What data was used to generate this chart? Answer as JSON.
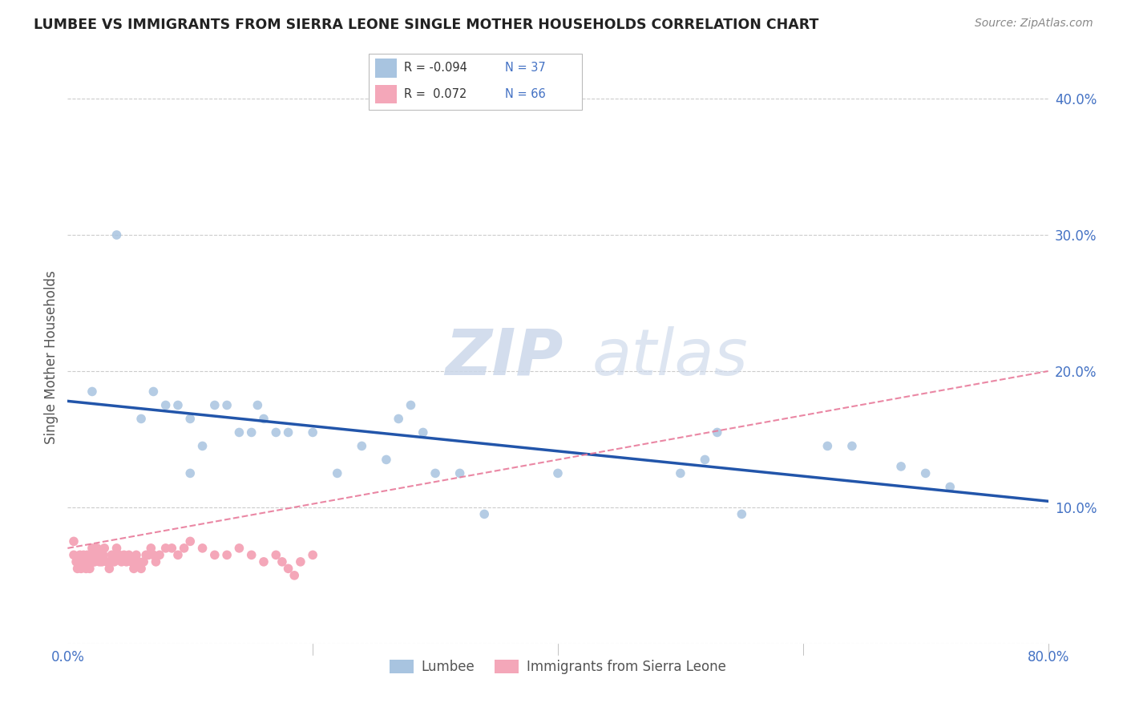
{
  "title": "LUMBEE VS IMMIGRANTS FROM SIERRA LEONE SINGLE MOTHER HOUSEHOLDS CORRELATION CHART",
  "source": "Source: ZipAtlas.com",
  "ylabel": "Single Mother Households",
  "xlim": [
    0.0,
    0.8
  ],
  "ylim": [
    0.0,
    0.42
  ],
  "lumbee_color": "#a8c4e0",
  "sierra_leone_color": "#f4a7b9",
  "lumbee_line_color": "#2255aa",
  "sierra_leone_line_color": "#e87a9a",
  "tick_color": "#4472c4",
  "watermark_color": "#ccd8ea",
  "lumbee_scatter_x": [
    0.02,
    0.04,
    0.06,
    0.07,
    0.08,
    0.09,
    0.1,
    0.1,
    0.11,
    0.12,
    0.13,
    0.14,
    0.15,
    0.155,
    0.16,
    0.17,
    0.18,
    0.2,
    0.22,
    0.24,
    0.26,
    0.27,
    0.28,
    0.29,
    0.3,
    0.32,
    0.34,
    0.4,
    0.5,
    0.52,
    0.53,
    0.55,
    0.62,
    0.64,
    0.68,
    0.7,
    0.72
  ],
  "lumbee_scatter_y": [
    0.185,
    0.3,
    0.165,
    0.185,
    0.175,
    0.175,
    0.165,
    0.125,
    0.145,
    0.175,
    0.175,
    0.155,
    0.155,
    0.175,
    0.165,
    0.155,
    0.155,
    0.155,
    0.125,
    0.145,
    0.135,
    0.165,
    0.175,
    0.155,
    0.125,
    0.125,
    0.095,
    0.125,
    0.125,
    0.135,
    0.155,
    0.095,
    0.145,
    0.145,
    0.13,
    0.125,
    0.115
  ],
  "sierra_leone_scatter_x": [
    0.005,
    0.005,
    0.007,
    0.008,
    0.009,
    0.01,
    0.01,
    0.011,
    0.012,
    0.013,
    0.014,
    0.015,
    0.016,
    0.017,
    0.018,
    0.019,
    0.02,
    0.021,
    0.022,
    0.023,
    0.024,
    0.025,
    0.026,
    0.027,
    0.028,
    0.029,
    0.03,
    0.032,
    0.034,
    0.036,
    0.038,
    0.04,
    0.042,
    0.044,
    0.046,
    0.048,
    0.05,
    0.052,
    0.054,
    0.056,
    0.058,
    0.06,
    0.062,
    0.064,
    0.066,
    0.068,
    0.07,
    0.072,
    0.075,
    0.08,
    0.085,
    0.09,
    0.095,
    0.1,
    0.11,
    0.12,
    0.13,
    0.14,
    0.15,
    0.16,
    0.17,
    0.175,
    0.18,
    0.185,
    0.19,
    0.2
  ],
  "sierra_leone_scatter_y": [
    0.075,
    0.065,
    0.06,
    0.055,
    0.06,
    0.065,
    0.06,
    0.055,
    0.06,
    0.065,
    0.06,
    0.055,
    0.065,
    0.06,
    0.055,
    0.065,
    0.07,
    0.06,
    0.06,
    0.065,
    0.07,
    0.065,
    0.06,
    0.065,
    0.06,
    0.065,
    0.07,
    0.06,
    0.055,
    0.065,
    0.06,
    0.07,
    0.065,
    0.06,
    0.065,
    0.06,
    0.065,
    0.06,
    0.055,
    0.065,
    0.06,
    0.055,
    0.06,
    0.065,
    0.065,
    0.07,
    0.065,
    0.06,
    0.065,
    0.07,
    0.07,
    0.065,
    0.07,
    0.075,
    0.07,
    0.065,
    0.065,
    0.07,
    0.065,
    0.06,
    0.065,
    0.06,
    0.055,
    0.05,
    0.06,
    0.065
  ],
  "lumbee_trend": [
    -0.094,
    0.135
  ],
  "sierra_trend": [
    0.072,
    0.058
  ]
}
